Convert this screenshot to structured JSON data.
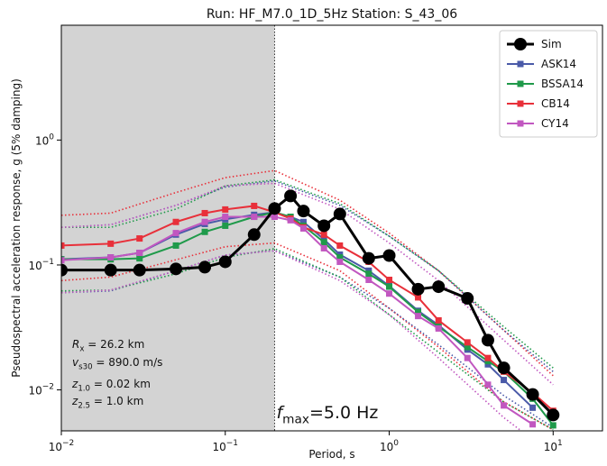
{
  "chart_data": {
    "type": "line",
    "title": "Run: HF_M7.0_1D_5Hz Station: S_43_06",
    "x_label": "Period, s",
    "y_label": "Pseudospectral acceleration response, g (5% damping)",
    "log_x": true,
    "log_y": true,
    "xlim": [
      0.01,
      20
    ],
    "ylim": [
      0.0047,
      8.3
    ],
    "xticks": [
      {
        "value": 0.01,
        "label": "10",
        "exp": "−2"
      },
      {
        "value": 0.1,
        "label": "10",
        "exp": "−1"
      },
      {
        "value": 1,
        "label": "10",
        "exp": "0"
      },
      {
        "value": 10,
        "label": "10",
        "exp": "1"
      }
    ],
    "yticks": [
      {
        "value": 0.01,
        "label": "10",
        "exp": "−2"
      },
      {
        "value": 0.1,
        "label": "10",
        "exp": "−1"
      },
      {
        "value": 1,
        "label": "10",
        "exp": "0"
      }
    ],
    "shaded_x": [
      0.01,
      0.2
    ],
    "shade_color": "#d3d3d3",
    "legend": "upper right",
    "x": [
      0.01,
      0.02,
      0.03,
      0.05,
      0.075,
      0.1,
      0.15,
      0.2,
      0.25,
      0.3,
      0.4,
      0.5,
      0.75,
      1.0,
      1.5,
      2.0,
      3.0,
      4.0,
      5.0,
      7.5,
      10.0
    ],
    "series": [
      {
        "name": "Sim",
        "color": "#000000",
        "values": [
          0.091,
          0.091,
          0.091,
          0.093,
          0.096,
          0.106,
          0.175,
          0.283,
          0.357,
          0.27,
          0.206,
          0.256,
          0.113,
          0.119,
          0.064,
          0.067,
          0.054,
          0.025,
          0.015,
          0.0092,
          0.0063
        ]
      },
      {
        "name": "ASK14",
        "color": "#4a5aa8",
        "values": [
          0.111,
          0.115,
          0.125,
          0.175,
          0.213,
          0.232,
          0.252,
          0.264,
          0.243,
          0.221,
          0.16,
          0.121,
          0.09,
          0.068,
          0.043,
          0.033,
          0.021,
          0.016,
          0.012,
          0.0072,
          null
        ]
      },
      {
        "name": "BSSA14",
        "color": "#1f9a4a",
        "values": [
          0.111,
          0.111,
          0.113,
          0.143,
          0.184,
          0.206,
          0.243,
          0.264,
          0.243,
          0.206,
          0.152,
          0.115,
          0.085,
          0.067,
          0.042,
          0.032,
          0.022,
          0.017,
          0.014,
          0.0085,
          0.0052
        ]
      },
      {
        "name": "CB14",
        "color": "#e8303a",
        "values": [
          0.143,
          0.148,
          0.163,
          0.221,
          0.26,
          0.278,
          0.297,
          0.264,
          0.235,
          0.2,
          0.175,
          0.143,
          0.106,
          0.076,
          0.055,
          0.036,
          0.024,
          0.018,
          0.014,
          0.0095,
          0.0068
        ]
      },
      {
        "name": "CY14",
        "color": "#c157c0",
        "values": [
          0.109,
          0.115,
          0.125,
          0.18,
          0.221,
          0.243,
          0.243,
          0.243,
          0.228,
          0.196,
          0.136,
          0.106,
          0.076,
          0.059,
          0.039,
          0.031,
          0.018,
          0.011,
          0.0075,
          0.0053,
          null
        ]
      }
    ],
    "band_x": [
      0.01,
      0.02,
      0.05,
      0.1,
      0.2,
      0.5,
      1,
      2,
      5,
      10
    ],
    "bands": [
      {
        "color": "#e8303a",
        "values": [
          0.25,
          0.26,
          0.38,
          0.5,
          0.57,
          0.33,
          0.18,
          0.09,
          0.03,
          0.013
        ]
      },
      {
        "color": "#e8303a",
        "values": [
          0.075,
          0.08,
          0.11,
          0.14,
          0.15,
          0.09,
          0.045,
          0.022,
          0.008,
          0.0048
        ]
      },
      {
        "color": "#4a5aa8",
        "values": [
          0.2,
          0.21,
          0.3,
          0.42,
          0.47,
          0.3,
          0.17,
          0.09,
          0.03,
          0.014
        ]
      },
      {
        "color": "#4a5aa8",
        "values": [
          0.06,
          0.062,
          0.09,
          0.12,
          0.13,
          0.08,
          0.045,
          0.023,
          0.009,
          0.005
        ]
      },
      {
        "color": "#1f9a4a",
        "values": [
          0.2,
          0.2,
          0.28,
          0.43,
          0.48,
          0.31,
          0.17,
          0.09,
          0.032,
          0.015
        ]
      },
      {
        "color": "#1f9a4a",
        "values": [
          0.062,
          0.063,
          0.085,
          0.115,
          0.135,
          0.08,
          0.04,
          0.02,
          0.008,
          0.0048
        ]
      },
      {
        "color": "#c157c0",
        "values": [
          0.2,
          0.21,
          0.3,
          0.43,
          0.45,
          0.28,
          0.15,
          0.075,
          0.025,
          0.011
        ]
      },
      {
        "color": "#c157c0",
        "values": [
          0.06,
          0.063,
          0.09,
          0.12,
          0.13,
          0.075,
          0.04,
          0.018,
          0.006,
          0.003
        ]
      }
    ],
    "annotations": [
      {
        "var": "R",
        "sub": "x",
        "text": " = 26.2 km"
      },
      {
        "var": "v",
        "sub": "s30",
        "text": " = 890.0 m/s"
      },
      {
        "var": "z",
        "sub": "1.0",
        "text": " = 0.02 km"
      },
      {
        "var": "z",
        "sub": "2.5",
        "text": " = 1.0 km"
      }
    ],
    "fmax_label": {
      "var": "f",
      "sub": "max",
      "text": "=5.0 Hz"
    }
  }
}
